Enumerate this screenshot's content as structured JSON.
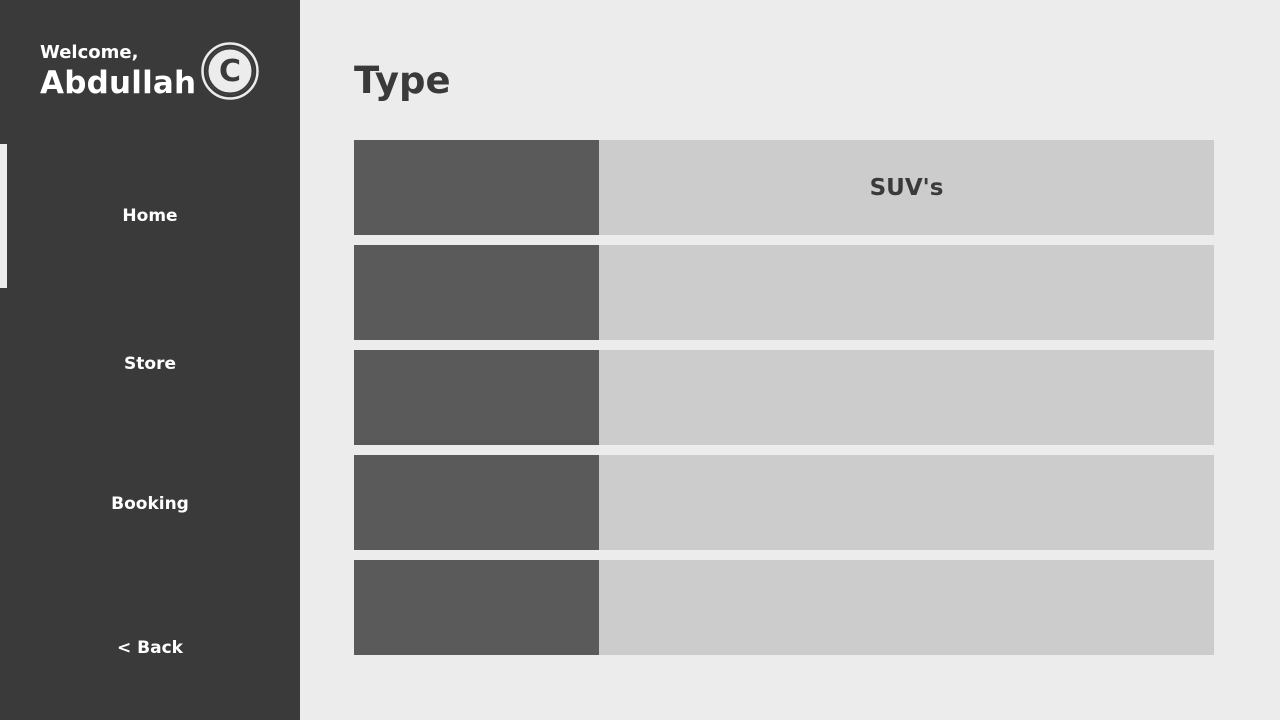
{
  "sidebar": {
    "welcome_label": "Welcome,",
    "user_name": "Abdullah",
    "logo_letter": "C",
    "nav": {
      "home": "Home",
      "store": "Store",
      "booking": "Booking",
      "back": "< Back"
    },
    "active_item": "Home"
  },
  "main": {
    "title": "Type",
    "types": [
      {
        "label": "SUV's"
      },
      {
        "label": ""
      },
      {
        "label": ""
      },
      {
        "label": ""
      },
      {
        "label": ""
      }
    ]
  },
  "colors": {
    "sidebar_bg": "#3a3a3a",
    "page_bg": "#ececec",
    "thumb_bg": "#5a5a5a",
    "row_bg": "#cccccc"
  }
}
